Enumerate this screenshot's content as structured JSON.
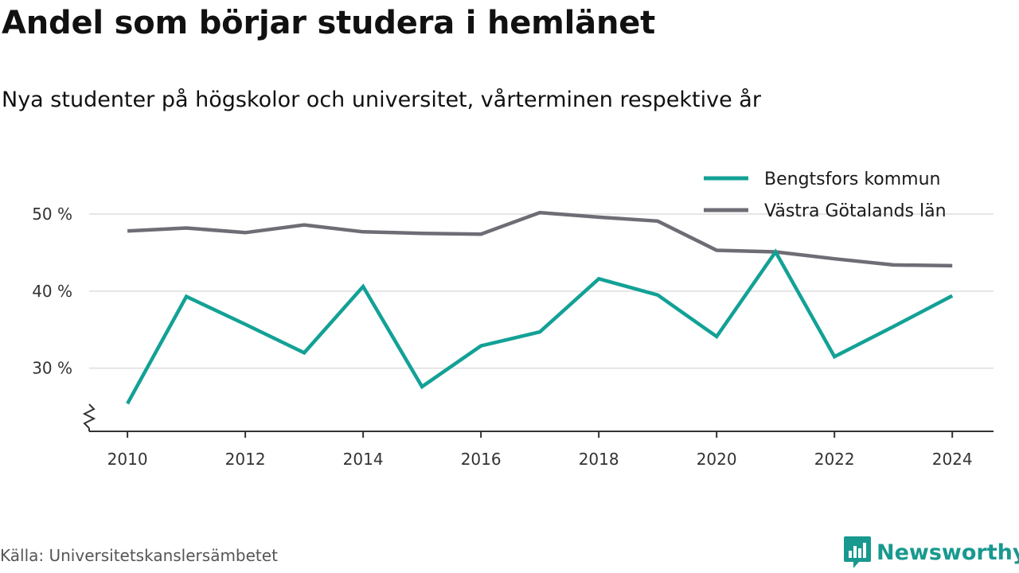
{
  "header": {
    "title": "Andel som börjar studera i hemlänet",
    "subtitle": "Nya studenter på högskolor och universitet, vårterminen respektive år"
  },
  "footer": {
    "source": "Källa: Universitetskanslersämbetet",
    "brand": "Newsworthy"
  },
  "colors": {
    "bengtsfors": "#13a196",
    "vastra_gotaland": "#6e6d75",
    "grid": "#dddddd",
    "axis": "#333333",
    "brand": "#18998f"
  },
  "chart_data": {
    "type": "line",
    "title": "Andel som börjar studera i hemlänet",
    "subtitle": "Nya studenter på högskolor och universitet, vårterminen respektive år",
    "x": [
      2010,
      2011,
      2012,
      2013,
      2014,
      2015,
      2016,
      2017,
      2018,
      2019,
      2020,
      2021,
      2022,
      2023,
      2024
    ],
    "x_ticks": [
      "2010",
      "2012",
      "2014",
      "2016",
      "2018",
      "2020",
      "2022",
      "2024"
    ],
    "y_ticks": [
      "30 %",
      "40 %",
      "50 %"
    ],
    "y_tick_values": [
      30,
      40,
      50
    ],
    "ylim": [
      21.8,
      53
    ],
    "xlim": [
      2009.35,
      2024.7
    ],
    "axis_break": true,
    "grid": "horizontal",
    "legend_position": "top-right",
    "series": [
      {
        "name": "Bengtsfors kommun",
        "color": "#13a196",
        "values": [
          25.4,
          39.3,
          35.7,
          32.0,
          40.6,
          27.6,
          32.9,
          34.7,
          41.6,
          39.5,
          34.1,
          45.1,
          31.5,
          35.4,
          39.4
        ]
      },
      {
        "name": "Västra Götalands län",
        "color": "#6e6d75",
        "values": [
          47.8,
          48.2,
          47.6,
          48.6,
          47.7,
          47.5,
          47.4,
          50.2,
          49.6,
          49.1,
          45.3,
          45.1,
          44.2,
          43.4,
          43.3
        ]
      }
    ]
  }
}
